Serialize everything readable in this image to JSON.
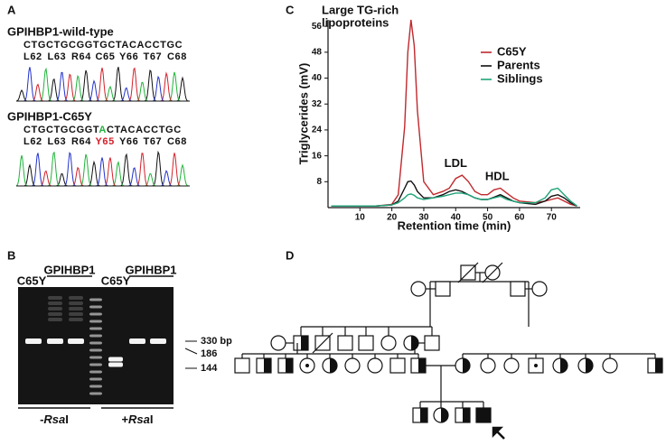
{
  "panels": {
    "a": "A",
    "b": "B",
    "c": "C",
    "d": "D"
  },
  "sequencing": {
    "wild_type": {
      "title": "GPIHBP1-wild-type",
      "sequence": "CTGCTGCGGTGCTACACCTGC",
      "codons": [
        "L62",
        "L63",
        "R64",
        "C65",
        "Y66",
        "T67",
        "C68"
      ]
    },
    "mutant": {
      "title": "GPIHBP1-C65Y",
      "sequence_parts": [
        "CTGCTGCGGT",
        "A",
        "CTACACCTGC"
      ],
      "codons": [
        "L62",
        "L63",
        "R64",
        "Y65",
        "Y66",
        "T67",
        "C68"
      ]
    }
  },
  "gel": {
    "lane_labels": [
      "C65Y",
      "GPIHBP1",
      "C65Y",
      "GPIHBP1"
    ],
    "size_labels": [
      "330 bp",
      "186",
      "144"
    ],
    "conditions": [
      {
        "sign": "-",
        "enzyme": "Rsa",
        "suffix": "I"
      },
      {
        "sign": "+",
        "enzyme": "Rsa",
        "suffix": "I"
      }
    ]
  },
  "chart_data": {
    "type": "line",
    "ylabel": "Triglycerides (mV)",
    "xlabel": "Retention time (min)",
    "annotations": [
      "Large TG-rich",
      "lipoproteins",
      "LDL",
      "HDL"
    ],
    "x": [
      1,
      5,
      10,
      15,
      20,
      22,
      24,
      25,
      26,
      27,
      28,
      30,
      33,
      36,
      38,
      40,
      42,
      44,
      46,
      48,
      50,
      52,
      54,
      56,
      58,
      60,
      65,
      68,
      70,
      72,
      74,
      76,
      78
    ],
    "xlim": [
      0,
      79
    ],
    "xticks": [
      10,
      20,
      30,
      40,
      50,
      60,
      70
    ],
    "ylim": [
      0,
      58
    ],
    "yticks": [
      8,
      16,
      24,
      32,
      40,
      48,
      56
    ],
    "series": [
      {
        "name": "C65Y",
        "color": "#c0282d",
        "values": [
          0.5,
          0.5,
          0.5,
          0.5,
          1,
          4,
          25,
          48,
          58,
          50,
          30,
          8,
          4,
          5,
          6,
          9,
          10,
          8,
          5,
          4,
          4,
          5.5,
          6,
          4.5,
          3,
          2,
          1.5,
          2,
          2.5,
          3,
          2,
          1,
          0.5
        ]
      },
      {
        "name": "Parents",
        "color": "#111111",
        "values": [
          0.5,
          0.5,
          0.5,
          0.5,
          0.8,
          2,
          6,
          8,
          8.2,
          7,
          5,
          3,
          3,
          4,
          5,
          5.5,
          5,
          4,
          3,
          2.5,
          2.5,
          3.2,
          4,
          3,
          2,
          1.5,
          1,
          2,
          3.5,
          4,
          3,
          1.5,
          0.5
        ]
      },
      {
        "name": "Siblings",
        "color": "#1fa37a",
        "values": [
          0.5,
          0.5,
          0.5,
          0.5,
          0.8,
          1.5,
          3,
          4,
          4.2,
          3.8,
          3,
          2.5,
          3,
          3.5,
          4,
          4.5,
          4.5,
          4,
          3,
          2.5,
          2.5,
          3,
          3.5,
          2.5,
          2,
          1.5,
          1.5,
          3,
          5.5,
          6,
          4,
          2,
          0.5
        ]
      }
    ],
    "legend": "upper right"
  }
}
